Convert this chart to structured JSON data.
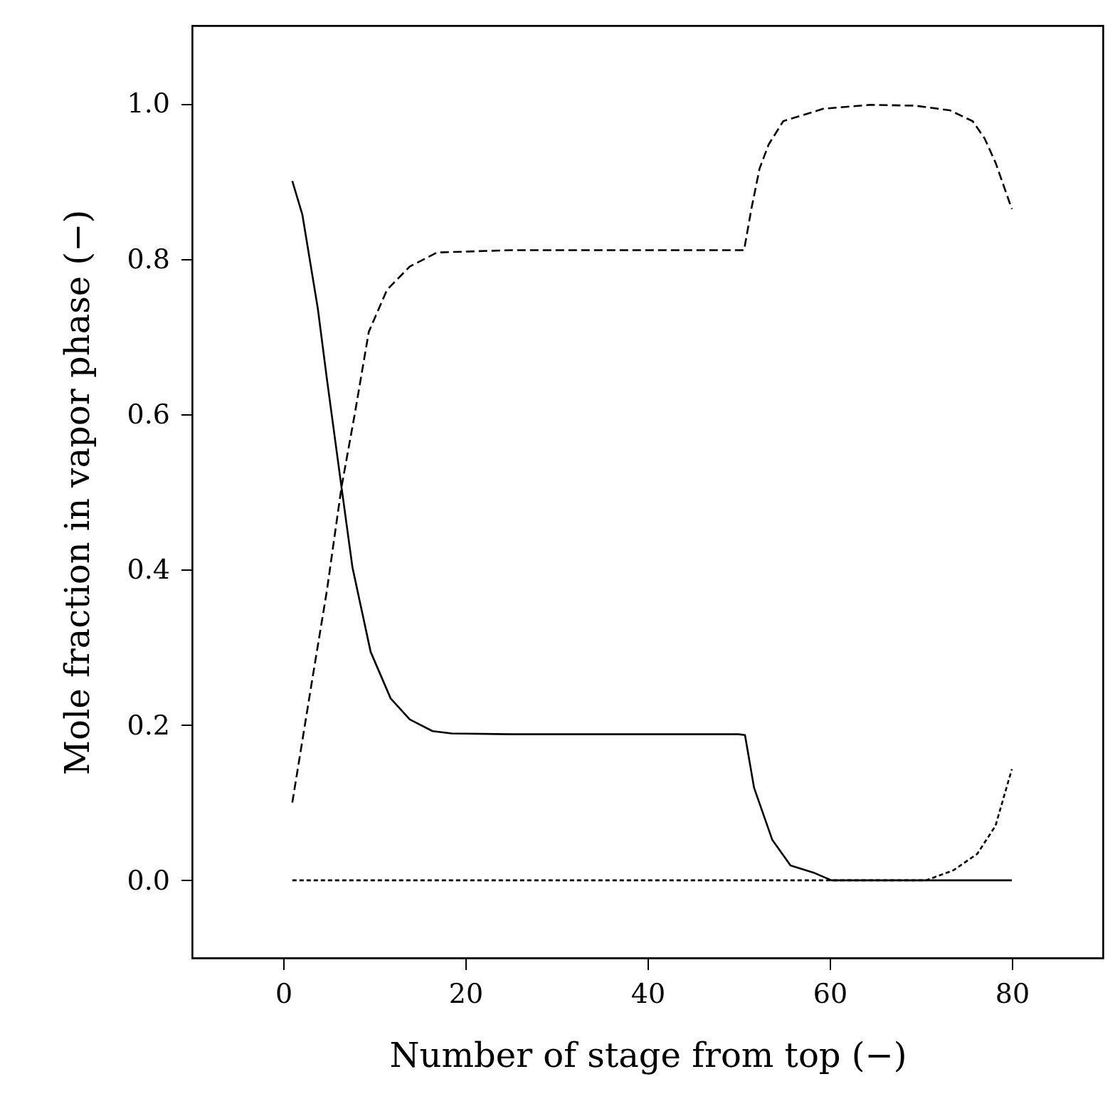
{
  "chart_data": {
    "type": "line",
    "xlabel": "Number of stage from top (−)",
    "ylabel": "Mole fraction in vapor phase (−)",
    "xlim": [
      -10,
      90
    ],
    "xticks": [
      0,
      20,
      40,
      60,
      80
    ],
    "ylim": [
      -0.1,
      1.1
    ],
    "yticks": [
      {
        "value": 0,
        "label": "0.0"
      },
      0.2,
      0.4,
      0.6,
      0.8,
      {
        "value": 1,
        "label": "1.0"
      }
    ],
    "grid": false,
    "marker": "none",
    "series": [
      {
        "color": "#000000",
        "line_style": "solid",
        "x": [
          1,
          2.1,
          3.8,
          4.8,
          6.4,
          7.6,
          9.6,
          11.8,
          13.9,
          16.4,
          18.5,
          25,
          35,
          45,
          50,
          50.7,
          51.7,
          53.7,
          55.7,
          58.2,
          60.2,
          65,
          70,
          75,
          80
        ],
        "values": [
          0.9,
          0.857,
          0.736,
          0.645,
          0.506,
          0.403,
          0.294,
          0.234,
          0.207,
          0.192,
          0.189,
          0.188,
          0.188,
          0.188,
          0.188,
          0.187,
          0.119,
          0.052,
          0.019,
          0.01,
          0.0,
          0.0,
          0.0,
          0.0,
          0.0
        ]
      },
      {
        "color": "#000000",
        "line_style": "dashed",
        "x": [
          1,
          3.1,
          4.8,
          6.4,
          7.9,
          9.4,
          11.4,
          13.9,
          16.9,
          25,
          35,
          45,
          50,
          50.6,
          51.4,
          52.3,
          53.3,
          54.9,
          59.3,
          64.4,
          69.4,
          73.2,
          75.7,
          77,
          78.2,
          80
        ],
        "values": [
          0.1,
          0.252,
          0.373,
          0.506,
          0.603,
          0.706,
          0.76,
          0.79,
          0.808,
          0.811,
          0.811,
          0.811,
          0.811,
          0.811,
          0.864,
          0.916,
          0.947,
          0.977,
          0.993,
          0.998,
          0.997,
          0.991,
          0.977,
          0.955,
          0.924,
          0.864
        ]
      },
      {
        "color": "#000000",
        "line_style": "dotted",
        "x": [
          1,
          20,
          40,
          60,
          70.6,
          73.6,
          76.2,
          78.2,
          80
        ],
        "values": [
          0.0,
          0.0,
          0.0,
          0.0,
          0.0,
          0.013,
          0.034,
          0.07,
          0.143
        ]
      }
    ]
  }
}
